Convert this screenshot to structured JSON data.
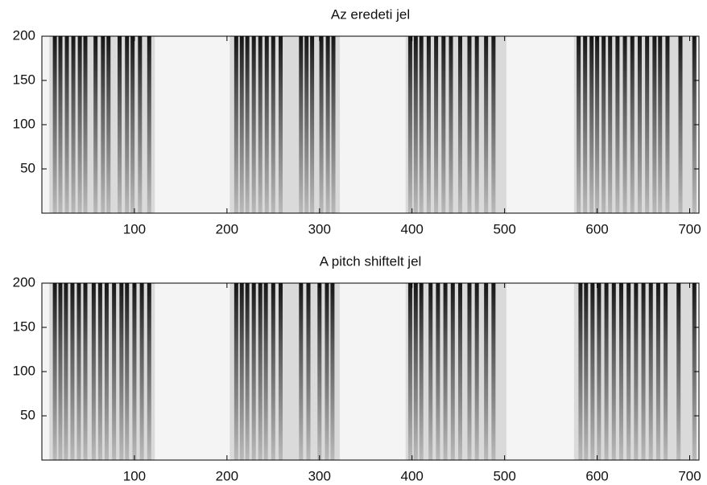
{
  "chart_data": [
    {
      "type": "spectrogram",
      "title": "Az eredeti jel",
      "xlim": [
        0,
        710
      ],
      "ylim": [
        0,
        200
      ],
      "xticks": [
        100,
        200,
        300,
        400,
        500,
        600,
        700
      ],
      "yticks": [
        50,
        100,
        150,
        200
      ],
      "regions": [
        [
          8,
          122
        ],
        [
          203,
          322
        ],
        [
          393,
          502
        ],
        [
          575,
          708
        ]
      ],
      "streaks": [
        14,
        20,
        27,
        34,
        41,
        47,
        58,
        66,
        72,
        84,
        92,
        98,
        106,
        116,
        210,
        216,
        222,
        229,
        236,
        243,
        250,
        258,
        280,
        286,
        292,
        302,
        309,
        315,
        398,
        404,
        410,
        418,
        426,
        434,
        442,
        452,
        462,
        470,
        480,
        488,
        580,
        587,
        594,
        600,
        607,
        614,
        622,
        630,
        638,
        646,
        654,
        662,
        668,
        676,
        690,
        705
      ],
      "color": "#111111"
    },
    {
      "type": "spectrogram",
      "title": "A pitch shiftelt jel",
      "xlim": [
        0,
        710
      ],
      "ylim": [
        0,
        200
      ],
      "xticks": [
        100,
        200,
        300,
        400,
        500,
        600,
        700
      ],
      "yticks": [
        50,
        100,
        150,
        200
      ],
      "regions": [
        [
          8,
          122
        ],
        [
          203,
          322
        ],
        [
          393,
          502
        ],
        [
          575,
          708
        ]
      ],
      "streaks": [
        14,
        20,
        26,
        33,
        40,
        47,
        56,
        63,
        70,
        78,
        86,
        92,
        100,
        108,
        116,
        210,
        216,
        222,
        229,
        236,
        242,
        250,
        258,
        280,
        288,
        300,
        308,
        314,
        398,
        404,
        410,
        420,
        428,
        436,
        444,
        452,
        462,
        470,
        480,
        488,
        582,
        588,
        595,
        602,
        610,
        618,
        626,
        634,
        642,
        650,
        658,
        666,
        674,
        688,
        705
      ],
      "color": "#111111"
    }
  ]
}
